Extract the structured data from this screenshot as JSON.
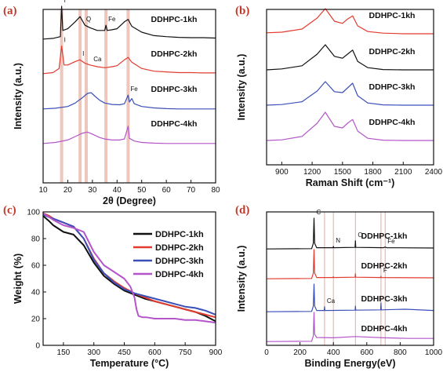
{
  "chart_data": [
    {
      "panel": "(a)",
      "type": "line",
      "xlabel": "2θ (Degree)",
      "ylabel": "Intensity (a.u.)",
      "xlim": [
        10,
        80
      ],
      "xticks": [
        10,
        20,
        30,
        40,
        50,
        60,
        70,
        80
      ],
      "highlight_bands": [
        17.5,
        25,
        27.5,
        35.5,
        44.5
      ],
      "annotations": [
        {
          "text": "I",
          "x": 17.5,
          "series": 0
        },
        {
          "text": "Q",
          "x": 26.5,
          "series": 0
        },
        {
          "text": "Fe",
          "x": 35.5,
          "series": 0
        },
        {
          "text": "I",
          "x": 17.5,
          "series": 1
        },
        {
          "text": "I",
          "x": 25,
          "series": 1
        },
        {
          "text": "Ca",
          "x": 29.5,
          "series": 1
        },
        {
          "text": "Fe",
          "x": 44.5,
          "series": 2
        }
      ],
      "series": [
        {
          "name": "DDHPC-1kh",
          "color": "#111111",
          "x": [
            10,
            14,
            17,
            17.5,
            18,
            20,
            23,
            25,
            27,
            29,
            32,
            35,
            35.5,
            36,
            38,
            40,
            43,
            44.5,
            46,
            50,
            55,
            60,
            65,
            70,
            75,
            80
          ],
          "y": [
            0.05,
            0.07,
            0.12,
            1.0,
            0.3,
            0.35,
            0.55,
            0.7,
            0.45,
            0.38,
            0.3,
            0.3,
            0.45,
            0.3,
            0.32,
            0.35,
            0.55,
            0.62,
            0.42,
            0.25,
            0.15,
            0.12,
            0.1,
            0.09,
            0.09,
            0.08
          ]
        },
        {
          "name": "DDHPC-2kh",
          "color": "#e23b2f",
          "x": [
            10,
            14,
            16.5,
            17.5,
            18.5,
            20,
            23,
            25,
            27,
            29,
            32,
            35,
            38,
            40,
            43,
            44.5,
            46,
            50,
            55,
            60,
            65,
            70,
            75,
            80
          ],
          "y": [
            0.05,
            0.08,
            0.2,
            0.85,
            0.3,
            0.3,
            0.4,
            0.45,
            0.35,
            0.3,
            0.25,
            0.22,
            0.25,
            0.28,
            0.45,
            0.52,
            0.38,
            0.2,
            0.12,
            0.1,
            0.08,
            0.08,
            0.07,
            0.07
          ]
        },
        {
          "name": "DDHPC-3kh",
          "color": "#3b4fb8",
          "x": [
            10,
            15,
            20,
            23,
            26,
            28,
            29.5,
            31,
            33,
            35,
            38,
            41,
            43,
            44.5,
            45,
            46,
            47,
            50,
            55,
            60,
            65,
            70,
            75,
            80
          ],
          "y": [
            0.05,
            0.07,
            0.12,
            0.22,
            0.38,
            0.5,
            0.52,
            0.42,
            0.3,
            0.22,
            0.18,
            0.17,
            0.2,
            0.45,
            0.25,
            0.35,
            0.2,
            0.12,
            0.08,
            0.06,
            0.05,
            0.05,
            0.05,
            0.05
          ]
        },
        {
          "name": "DDHPC-4kh",
          "color": "#b456c9",
          "x": [
            10,
            15,
            20,
            23,
            26,
            28,
            30,
            33,
            35,
            38,
            41,
            43,
            44.5,
            45,
            47,
            50,
            55,
            60,
            65,
            70,
            75,
            80
          ],
          "y": [
            0.05,
            0.08,
            0.15,
            0.25,
            0.35,
            0.38,
            0.32,
            0.22,
            0.18,
            0.15,
            0.15,
            0.18,
            0.55,
            0.2,
            0.12,
            0.08,
            0.06,
            0.05,
            0.05,
            0.05,
            0.05,
            0.05
          ]
        }
      ]
    },
    {
      "panel": "(b)",
      "type": "line",
      "xlabel": "Raman Shift (cm⁻¹)",
      "ylabel": "Intensity (a.u.)",
      "xlim": [
        750,
        2400
      ],
      "xticks": [
        900,
        1200,
        1500,
        1800,
        2100,
        2400
      ],
      "series": [
        {
          "name": "DDHPC-1kh",
          "color": "#e23b2f",
          "x": [
            750,
            900,
            1100,
            1250,
            1330,
            1420,
            1500,
            1550,
            1600,
            1650,
            1750,
            1900,
            2100,
            2400
          ],
          "y": [
            0.08,
            0.1,
            0.2,
            0.55,
            0.85,
            0.45,
            0.38,
            0.52,
            0.62,
            0.3,
            0.12,
            0.07,
            0.05,
            0.05
          ]
        },
        {
          "name": "DDHPC-2kh",
          "color": "#111111",
          "x": [
            750,
            900,
            1100,
            1250,
            1330,
            1420,
            1500,
            1550,
            1600,
            1650,
            1750,
            1900,
            2100,
            2400
          ],
          "y": [
            0.05,
            0.08,
            0.18,
            0.55,
            0.85,
            0.48,
            0.42,
            0.55,
            0.68,
            0.32,
            0.12,
            0.06,
            0.05,
            0.05
          ]
        },
        {
          "name": "DDHPC-3kh",
          "color": "#3b4fb8",
          "x": [
            750,
            900,
            1100,
            1250,
            1330,
            1420,
            1500,
            1550,
            1600,
            1650,
            1750,
            1900,
            2100,
            2400
          ],
          "y": [
            0.05,
            0.07,
            0.16,
            0.5,
            0.8,
            0.48,
            0.45,
            0.6,
            0.75,
            0.35,
            0.12,
            0.06,
            0.05,
            0.05
          ]
        },
        {
          "name": "DDHPC-4kh",
          "color": "#b456c9",
          "x": [
            750,
            900,
            1100,
            1250,
            1330,
            1420,
            1500,
            1550,
            1600,
            1650,
            1750,
            1900,
            2100,
            2400
          ],
          "y": [
            0.05,
            0.07,
            0.18,
            0.6,
            0.95,
            0.5,
            0.45,
            0.6,
            0.72,
            0.35,
            0.12,
            0.06,
            0.05,
            0.05
          ]
        }
      ]
    },
    {
      "panel": "(c)",
      "type": "line",
      "xlabel": "Temperature (°C)",
      "ylabel": "Weight (%)",
      "xlim": [
        50,
        900
      ],
      "ylim": [
        0,
        100
      ],
      "xticks": [
        150,
        300,
        450,
        600,
        750,
        900
      ],
      "yticks": [
        0,
        20,
        40,
        60,
        80,
        100
      ],
      "legend": "top-right",
      "series": [
        {
          "name": "DDHPC-1kh",
          "color": "#111111",
          "x": [
            50,
            80,
            100,
            150,
            200,
            250,
            300,
            350,
            400,
            450,
            500,
            550,
            600,
            650,
            700,
            750,
            800,
            850,
            900
          ],
          "y": [
            97,
            93,
            90,
            85,
            83,
            75,
            62,
            52,
            46,
            41,
            38,
            35,
            33,
            31,
            29,
            27,
            25,
            22,
            18
          ]
        },
        {
          "name": "DDHPC-2kh",
          "color": "#e23b2f",
          "x": [
            50,
            80,
            100,
            150,
            200,
            250,
            300,
            350,
            400,
            450,
            500,
            550,
            600,
            650,
            700,
            750,
            800,
            850,
            900
          ],
          "y": [
            99,
            97,
            95,
            92,
            89,
            80,
            65,
            54,
            48,
            43,
            39,
            36,
            33,
            31,
            29,
            27,
            25,
            23,
            21
          ]
        },
        {
          "name": "DDHPC-3kh",
          "color": "#3b4fb8",
          "x": [
            50,
            80,
            100,
            150,
            200,
            250,
            300,
            350,
            400,
            450,
            500,
            550,
            600,
            650,
            700,
            750,
            800,
            850,
            900
          ],
          "y": [
            98,
            96,
            95,
            92,
            89,
            80,
            64,
            54,
            47,
            42,
            39,
            37,
            35,
            33,
            31,
            29,
            28,
            26,
            23
          ]
        },
        {
          "name": "DDHPC-4kh",
          "color": "#b456c9",
          "x": [
            50,
            80,
            100,
            150,
            200,
            250,
            300,
            350,
            400,
            450,
            480,
            500,
            510,
            520,
            540,
            560,
            600,
            650,
            700,
            750,
            800,
            850,
            900
          ],
          "y": [
            99,
            96,
            94,
            90,
            88,
            85,
            70,
            60,
            55,
            50,
            44,
            36,
            27,
            22,
            21,
            21,
            20,
            20,
            20,
            19,
            19,
            18,
            17
          ]
        }
      ]
    },
    {
      "panel": "(d)",
      "type": "line",
      "xlabel": "Binding Energy(eV)",
      "ylabel": "Intensity (a.u.)",
      "xlim": [
        0,
        1000
      ],
      "xticks": [
        0,
        200,
        400,
        600,
        800,
        1000
      ],
      "highlight_lines": [
        347,
        400,
        532,
        685,
        710
      ],
      "annotations": [
        {
          "text": "C",
          "x": 284,
          "series": 0
        },
        {
          "text": "N",
          "x": 400,
          "series": 0
        },
        {
          "text": "O",
          "x": 532,
          "series": 0
        },
        {
          "text": "Fe",
          "x": 710,
          "series": 0
        },
        {
          "text": "F",
          "x": 685,
          "series": 1
        },
        {
          "text": "Ca",
          "x": 347,
          "series": 2
        }
      ],
      "series": [
        {
          "name": "DDHPC-1kh",
          "color": "#111111",
          "x": [
            0,
            270,
            280,
            284,
            288,
            300,
            398,
            400,
            402,
            530,
            532,
            534,
            700,
            710,
            720,
            1000
          ],
          "y": [
            0.02,
            0.03,
            0.2,
            1.0,
            0.2,
            0.06,
            0.06,
            0.1,
            0.06,
            0.07,
            0.28,
            0.07,
            0.06,
            0.08,
            0.06,
            0.05
          ]
        },
        {
          "name": "DDHPC-2kh",
          "color": "#e23b2f",
          "x": [
            0,
            270,
            280,
            284,
            288,
            300,
            398,
            400,
            402,
            530,
            532,
            534,
            683,
            685,
            687,
            1000
          ],
          "y": [
            0.02,
            0.03,
            0.2,
            0.95,
            0.2,
            0.06,
            0.06,
            0.09,
            0.06,
            0.07,
            0.18,
            0.07,
            0.06,
            0.1,
            0.06,
            0.05
          ]
        },
        {
          "name": "DDHPC-3kh",
          "color": "#3b4fb8",
          "x": [
            0,
            270,
            280,
            284,
            288,
            300,
            345,
            347,
            349,
            530,
            532,
            534,
            683,
            685,
            687,
            830,
            1000
          ],
          "y": [
            0.02,
            0.03,
            0.2,
            0.9,
            0.2,
            0.06,
            0.06,
            0.18,
            0.06,
            0.07,
            0.2,
            0.07,
            0.08,
            0.3,
            0.08,
            0.1,
            0.06
          ]
        },
        {
          "name": "DDHPC-4kh",
          "color": "#b456c9",
          "x": [
            0,
            270,
            280,
            284,
            288,
            300,
            400,
            532,
            700,
            850,
            1000
          ],
          "y": [
            0.02,
            0.03,
            0.2,
            0.95,
            0.25,
            0.15,
            0.14,
            0.18,
            0.14,
            0.12,
            0.12
          ]
        }
      ]
    }
  ]
}
